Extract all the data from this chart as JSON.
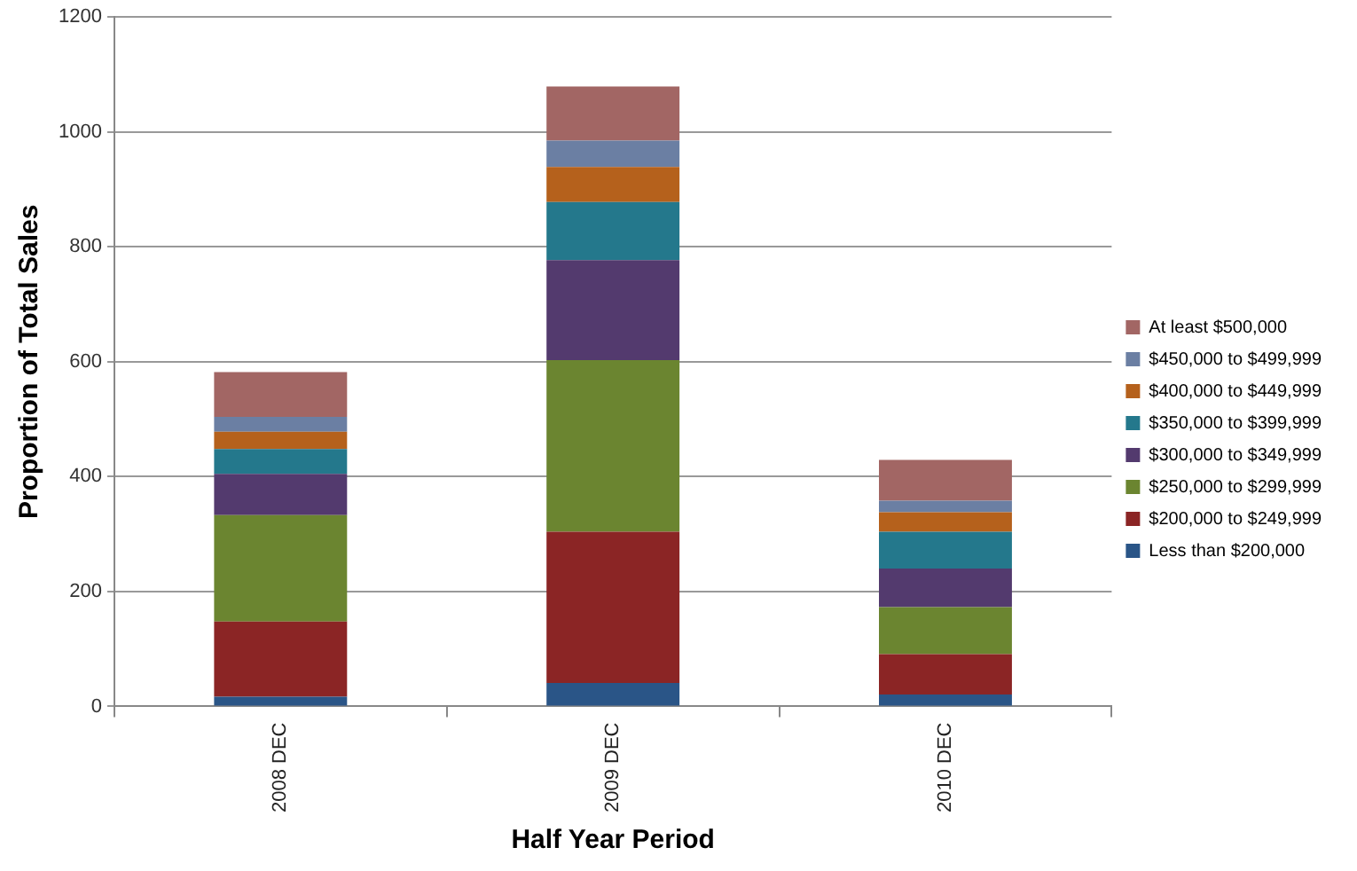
{
  "chart_data": {
    "type": "bar",
    "stacked": true,
    "xlabel": "Half Year Period",
    "ylabel": "Proportion of Total Sales",
    "categories": [
      "2008 DEC",
      "2009 DEC",
      "2010 DEC"
    ],
    "series": [
      {
        "name": "Less than $200,000",
        "color": "#2a5587",
        "values": [
          17,
          41,
          21
        ]
      },
      {
        "name": "$200,000 to $249,999",
        "color": "#8b2525",
        "values": [
          131,
          263,
          70
        ]
      },
      {
        "name": "$250,000 to $299,999",
        "color": "#6b8530",
        "values": [
          185,
          299,
          82
        ]
      },
      {
        "name": "$300,000 to $349,999",
        "color": "#533a6e",
        "values": [
          72,
          174,
          67
        ]
      },
      {
        "name": "$350,000 to $399,999",
        "color": "#24788c",
        "values": [
          43,
          101,
          64
        ]
      },
      {
        "name": "$400,000 to $449,999",
        "color": "#b5611c",
        "values": [
          30,
          61,
          34
        ]
      },
      {
        "name": "$450,000 to $499,999",
        "color": "#6b7fa3",
        "values": [
          26,
          46,
          20
        ]
      },
      {
        "name": "At least $500,000",
        "color": "#a26664",
        "values": [
          78,
          94,
          71
        ]
      }
    ],
    "ylim": [
      0,
      1200
    ],
    "yticks": [
      0,
      200,
      400,
      600,
      800,
      1000,
      1200
    ],
    "grid": "y",
    "legend": "right"
  }
}
